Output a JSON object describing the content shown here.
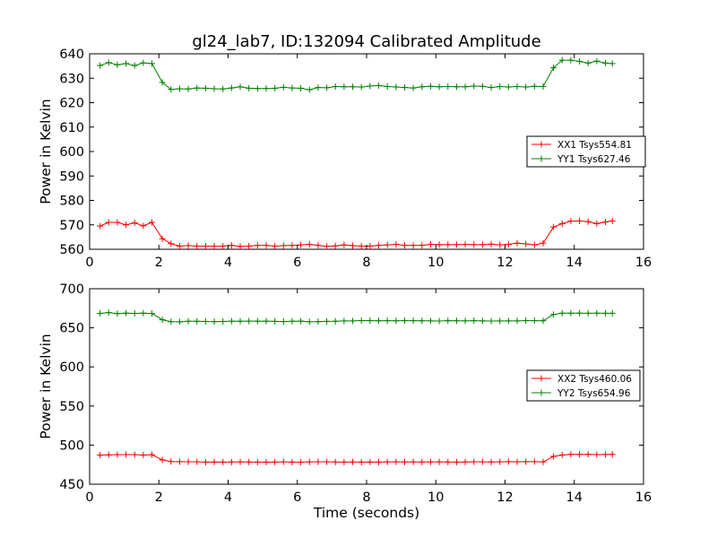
{
  "figure_title": "gl24_lab7, ID:132094 Calibrated Amplitude",
  "xlabel": "Time (seconds)",
  "chart_data": [
    {
      "type": "line",
      "ylabel": "Power in Kelvin",
      "xlim": [
        0,
        16
      ],
      "ylim": [
        560,
        640
      ],
      "xticks": [
        0,
        2,
        4,
        6,
        8,
        10,
        12,
        14,
        16
      ],
      "yticks": [
        560,
        570,
        580,
        590,
        600,
        610,
        620,
        630,
        640
      ],
      "legend_position": "center-right",
      "x": [
        0.3,
        0.55,
        0.8,
        1.05,
        1.3,
        1.55,
        1.8,
        2.1,
        2.35,
        2.6,
        2.85,
        3.1,
        3.35,
        3.6,
        3.85,
        4.1,
        4.35,
        4.6,
        4.85,
        5.1,
        5.35,
        5.6,
        5.85,
        6.1,
        6.35,
        6.6,
        6.85,
        7.1,
        7.35,
        7.6,
        7.85,
        8.1,
        8.35,
        8.6,
        8.85,
        9.1,
        9.35,
        9.6,
        9.85,
        10.1,
        10.35,
        10.6,
        10.85,
        11.1,
        11.35,
        11.6,
        11.85,
        12.1,
        12.35,
        12.6,
        12.85,
        13.1,
        13.4,
        13.65,
        13.9,
        14.15,
        14.4,
        14.65,
        14.9,
        15.1
      ],
      "series": [
        {
          "name": "XX1 Tsys554.81",
          "color": "#ff0000",
          "values": [
            569.5,
            571.0,
            571.0,
            570.0,
            570.8,
            569.6,
            571.0,
            564.3,
            562.3,
            561.3,
            561.5,
            561.3,
            561.3,
            561.3,
            561.3,
            561.6,
            561.2,
            561.3,
            561.6,
            561.6,
            561.3,
            561.5,
            561.6,
            561.8,
            562.0,
            561.6,
            561.2,
            561.4,
            561.8,
            561.5,
            561.3,
            561.3,
            561.6,
            561.8,
            562.0,
            561.6,
            561.6,
            561.6,
            562.0,
            561.9,
            561.9,
            561.9,
            562.0,
            561.9,
            561.9,
            562.1,
            561.8,
            562.0,
            562.5,
            562.2,
            561.8,
            562.5,
            569.1,
            570.5,
            571.5,
            571.6,
            571.3,
            570.5,
            571.2,
            571.6
          ]
        },
        {
          "name": "YY1 Tsys627.46",
          "color": "#008000",
          "values": [
            635.2,
            636.4,
            635.5,
            636.0,
            635.2,
            636.3,
            636.0,
            628.3,
            625.4,
            625.7,
            625.6,
            626.0,
            625.9,
            625.7,
            625.6,
            626.0,
            626.5,
            625.9,
            625.8,
            625.8,
            625.9,
            626.3,
            626.0,
            625.9,
            625.3,
            626.2,
            626.1,
            626.6,
            626.5,
            626.5,
            626.4,
            626.8,
            627.0,
            626.6,
            626.4,
            626.2,
            626.0,
            626.5,
            626.7,
            626.5,
            626.6,
            626.5,
            626.5,
            626.8,
            626.7,
            626.2,
            626.6,
            626.4,
            626.6,
            626.4,
            626.7,
            626.6,
            634.3,
            637.4,
            637.4,
            636.9,
            636.2,
            637.0,
            636.2,
            636.0
          ]
        }
      ]
    },
    {
      "type": "line",
      "ylabel": "Power in Kelvin",
      "xlim": [
        0,
        16
      ],
      "ylim": [
        450,
        700
      ],
      "xticks": [
        0,
        2,
        4,
        6,
        8,
        10,
        12,
        14,
        16
      ],
      "yticks": [
        450,
        500,
        550,
        600,
        650,
        700
      ],
      "legend_position": "center-right",
      "x": [
        0.3,
        0.55,
        0.8,
        1.05,
        1.3,
        1.55,
        1.8,
        2.1,
        2.35,
        2.6,
        2.85,
        3.1,
        3.35,
        3.6,
        3.85,
        4.1,
        4.35,
        4.6,
        4.85,
        5.1,
        5.35,
        5.6,
        5.85,
        6.1,
        6.35,
        6.6,
        6.85,
        7.1,
        7.35,
        7.6,
        7.85,
        8.1,
        8.35,
        8.6,
        8.85,
        9.1,
        9.35,
        9.6,
        9.85,
        10.1,
        10.35,
        10.6,
        10.85,
        11.1,
        11.35,
        11.6,
        11.85,
        12.1,
        12.35,
        12.6,
        12.85,
        13.1,
        13.4,
        13.65,
        13.9,
        14.15,
        14.4,
        14.65,
        14.9,
        15.1
      ],
      "series": [
        {
          "name": "XX2 Tsys460.06",
          "color": "#ff0000",
          "values": [
            487.2,
            487.5,
            487.8,
            487.9,
            487.8,
            487.3,
            487.7,
            481.0,
            479.0,
            478.8,
            478.7,
            478.6,
            478.2,
            478.4,
            478.3,
            478.4,
            478.5,
            478.4,
            478.3,
            478.3,
            478.3,
            478.6,
            478.2,
            478.2,
            478.5,
            478.6,
            478.6,
            478.4,
            478.3,
            478.5,
            478.2,
            478.4,
            478.3,
            478.5,
            478.6,
            478.4,
            478.5,
            478.4,
            478.5,
            478.5,
            478.4,
            478.3,
            478.4,
            478.6,
            478.6,
            478.4,
            478.6,
            478.8,
            478.6,
            478.8,
            478.8,
            478.5,
            485.6,
            487.3,
            488.2,
            488.1,
            488.2,
            487.9,
            488.0,
            488.2
          ]
        },
        {
          "name": "YY2 Tsys654.96",
          "color": "#008000",
          "values": [
            668.5,
            669.5,
            668.2,
            668.8,
            668.4,
            668.7,
            668.3,
            660.3,
            657.8,
            657.7,
            658.4,
            658.4,
            658.2,
            657.9,
            658.1,
            658.5,
            658.5,
            658.6,
            658.5,
            658.6,
            658.3,
            658.0,
            658.4,
            658.6,
            657.7,
            657.9,
            658.3,
            658.4,
            658.8,
            658.8,
            659.3,
            659.2,
            659.0,
            659.1,
            659.0,
            659.2,
            659.1,
            659.0,
            658.9,
            658.7,
            659.1,
            659.0,
            658.9,
            659.1,
            658.9,
            658.7,
            658.8,
            658.9,
            658.9,
            659.2,
            659.2,
            659.0,
            667.1,
            668.7,
            668.7,
            668.8,
            668.6,
            668.7,
            668.6,
            668.6
          ]
        }
      ]
    }
  ]
}
